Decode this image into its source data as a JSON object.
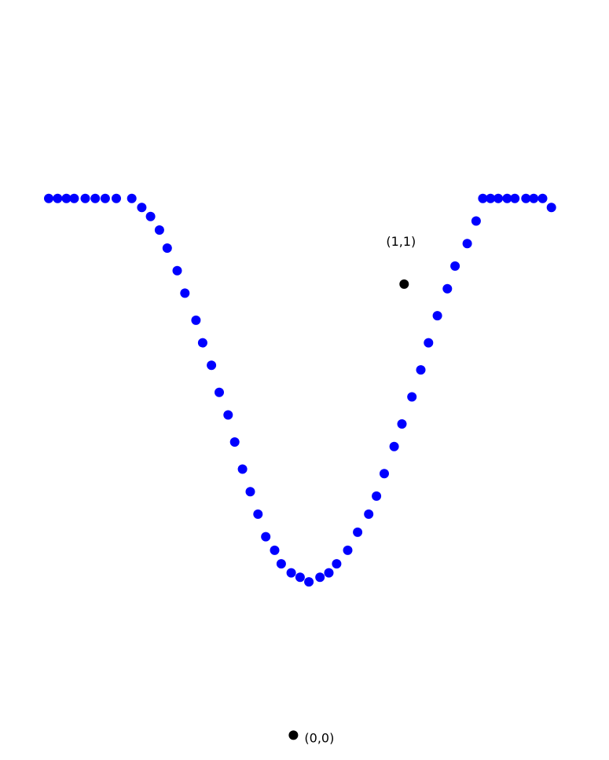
{
  "chart_data": {
    "type": "scatter",
    "title": "",
    "xlabel": "",
    "ylabel": "",
    "grid": false,
    "legend": "none",
    "xlim": [
      -2.65,
      2.85
    ],
    "ylim": [
      -0.055,
      1.63
    ],
    "series": [
      {
        "color": "#0000ff",
        "x": [
          -2.21,
          -2.13,
          -2.05,
          -1.98,
          -1.88,
          -1.79,
          -1.7,
          -1.6,
          -1.46,
          -1.37,
          -1.29,
          -1.21,
          -1.14,
          -1.05,
          -0.98,
          -0.88,
          -0.82,
          -0.74,
          -0.67,
          -0.59,
          -0.53,
          -0.46,
          -0.39,
          -0.32,
          -0.25,
          -0.17,
          -0.11,
          -0.02,
          0.06,
          0.14,
          0.24,
          0.32,
          0.39,
          0.49,
          0.58,
          0.68,
          0.75,
          0.82,
          0.91,
          0.98,
          1.07,
          1.15,
          1.22,
          1.3,
          1.39,
          1.46,
          1.57,
          1.65,
          1.71,
          1.78,
          1.85,
          1.93,
          2.0,
          2.1,
          2.17,
          2.25,
          2.33
        ],
        "y": [
          1.19,
          1.19,
          1.19,
          1.19,
          1.19,
          1.19,
          1.19,
          1.19,
          1.19,
          1.17,
          1.15,
          1.12,
          1.08,
          1.03,
          0.98,
          0.92,
          0.87,
          0.82,
          0.76,
          0.71,
          0.65,
          0.59,
          0.54,
          0.49,
          0.44,
          0.41,
          0.38,
          0.36,
          0.35,
          0.34,
          0.35,
          0.36,
          0.38,
          0.41,
          0.45,
          0.49,
          0.53,
          0.58,
          0.64,
          0.69,
          0.75,
          0.81,
          0.87,
          0.93,
          0.99,
          1.04,
          1.09,
          1.14,
          1.19,
          1.19,
          1.19,
          1.19,
          1.19,
          1.19,
          1.19,
          1.19,
          1.17
        ]
      }
    ],
    "reference_points": [
      {
        "label": "(1,1)",
        "x": 1,
        "y": 1,
        "color": "#000000"
      },
      {
        "label": "(0,0)",
        "x": 0,
        "y": 0,
        "color": "#000000"
      }
    ]
  }
}
